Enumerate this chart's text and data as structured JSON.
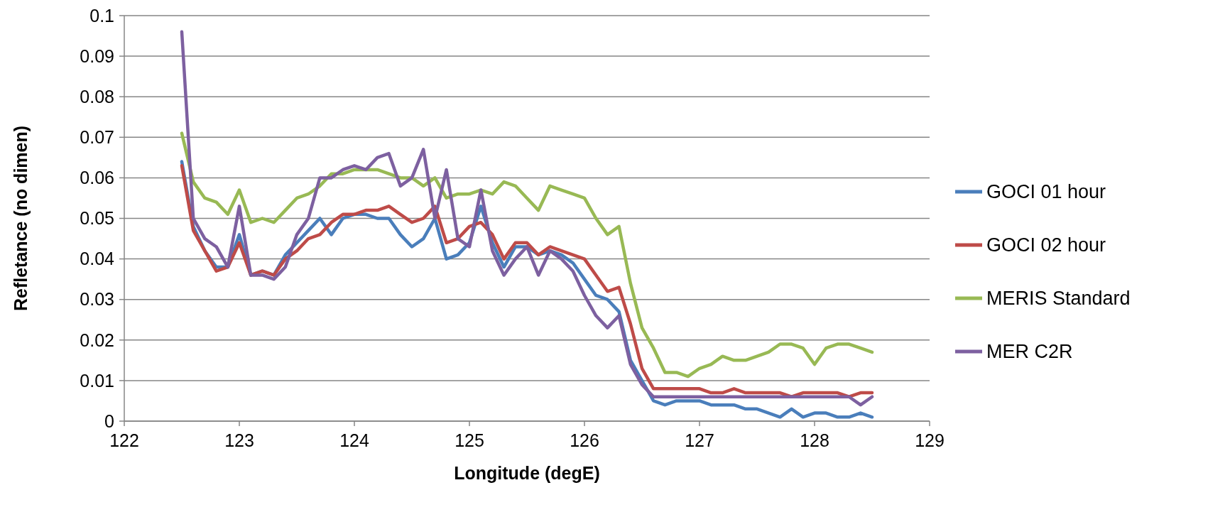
{
  "chart_data": {
    "type": "line",
    "xlabel": "Longitude (degE)",
    "ylabel": "Refletance (no dimen)",
    "xlim": [
      122,
      129
    ],
    "xticks": [
      122,
      123,
      124,
      125,
      126,
      127,
      128,
      129
    ],
    "ylim": [
      0,
      0.1
    ],
    "yticks": [
      0,
      0.01,
      0.02,
      0.03,
      0.04,
      0.05,
      0.06,
      0.07,
      0.08,
      0.09,
      0.1
    ],
    "grid": "y",
    "legend": "right",
    "marker": "none",
    "line_style": "solid",
    "x": [
      122.5,
      122.6,
      122.7,
      122.8,
      122.9,
      123.0,
      123.1,
      123.2,
      123.3,
      123.4,
      123.5,
      123.6,
      123.7,
      123.8,
      123.9,
      124.0,
      124.1,
      124.2,
      124.3,
      124.4,
      124.5,
      124.6,
      124.7,
      124.8,
      124.9,
      125.0,
      125.1,
      125.2,
      125.3,
      125.4,
      125.5,
      125.6,
      125.7,
      125.8,
      125.9,
      126.0,
      126.1,
      126.2,
      126.3,
      126.4,
      126.5,
      126.6,
      126.7,
      126.8,
      126.9,
      127.0,
      127.1,
      127.2,
      127.3,
      127.4,
      127.5,
      127.6,
      127.7,
      127.8,
      127.9,
      128.0,
      128.1,
      128.2,
      128.3,
      128.4,
      128.5
    ],
    "series": [
      {
        "name": "GOCI 01 hour",
        "color": "#4a7ebb",
        "values": [
          0.064,
          0.048,
          0.042,
          0.038,
          0.038,
          0.046,
          0.036,
          0.037,
          0.036,
          0.041,
          0.044,
          0.047,
          0.05,
          0.046,
          0.05,
          0.051,
          0.051,
          0.05,
          0.05,
          0.046,
          0.043,
          0.045,
          0.05,
          0.04,
          0.041,
          0.044,
          0.053,
          0.044,
          0.038,
          0.043,
          0.043,
          0.041,
          0.042,
          0.041,
          0.039,
          0.035,
          0.031,
          0.03,
          0.027,
          0.015,
          0.01,
          0.005,
          0.004,
          0.005,
          0.005,
          0.005,
          0.004,
          0.004,
          0.004,
          0.003,
          0.003,
          0.002,
          0.001,
          0.003,
          0.001,
          0.002,
          0.002,
          0.001,
          0.001,
          0.002,
          0.001
        ]
      },
      {
        "name": "GOCI 02 hour",
        "color": "#be4b48",
        "values": [
          0.063,
          0.047,
          0.042,
          0.037,
          0.038,
          0.044,
          0.036,
          0.037,
          0.036,
          0.04,
          0.042,
          0.045,
          0.046,
          0.049,
          0.051,
          0.051,
          0.052,
          0.052,
          0.053,
          0.051,
          0.049,
          0.05,
          0.053,
          0.044,
          0.045,
          0.048,
          0.049,
          0.046,
          0.04,
          0.044,
          0.044,
          0.041,
          0.043,
          0.042,
          0.041,
          0.04,
          0.036,
          0.032,
          0.033,
          0.024,
          0.013,
          0.008,
          0.008,
          0.008,
          0.008,
          0.008,
          0.007,
          0.007,
          0.008,
          0.007,
          0.007,
          0.007,
          0.007,
          0.006,
          0.007,
          0.007,
          0.007,
          0.007,
          0.006,
          0.007,
          0.007
        ]
      },
      {
        "name": "MERIS Standard",
        "color": "#98b954",
        "values": [
          0.071,
          0.059,
          0.055,
          0.054,
          0.051,
          0.057,
          0.049,
          0.05,
          0.049,
          0.052,
          0.055,
          0.056,
          0.058,
          0.061,
          0.061,
          0.062,
          0.062,
          0.062,
          0.061,
          0.06,
          0.06,
          0.058,
          0.06,
          0.055,
          0.056,
          0.056,
          0.057,
          0.056,
          0.059,
          0.058,
          0.055,
          0.052,
          0.058,
          0.057,
          0.056,
          0.055,
          0.05,
          0.046,
          0.048,
          0.034,
          0.023,
          0.018,
          0.012,
          0.012,
          0.011,
          0.013,
          0.014,
          0.016,
          0.015,
          0.015,
          0.016,
          0.017,
          0.019,
          0.019,
          0.018,
          0.014,
          0.018,
          0.019,
          0.019,
          0.018,
          0.017
        ]
      },
      {
        "name": "MER C2R",
        "color": "#7d60a0",
        "values": [
          0.096,
          0.05,
          0.045,
          0.043,
          0.038,
          0.053,
          0.036,
          0.036,
          0.035,
          0.038,
          0.046,
          0.05,
          0.06,
          0.06,
          0.062,
          0.063,
          0.062,
          0.065,
          0.066,
          0.058,
          0.06,
          0.067,
          0.05,
          0.062,
          0.045,
          0.043,
          0.057,
          0.042,
          0.036,
          0.04,
          0.043,
          0.036,
          0.042,
          0.04,
          0.037,
          0.031,
          0.026,
          0.023,
          0.026,
          0.014,
          0.009,
          0.006,
          0.006,
          0.006,
          0.006,
          0.006,
          0.006,
          0.006,
          0.006,
          0.006,
          0.006,
          0.006,
          0.006,
          0.006,
          0.006,
          0.006,
          0.006,
          0.006,
          0.006,
          0.004,
          0.006
        ]
      }
    ]
  }
}
